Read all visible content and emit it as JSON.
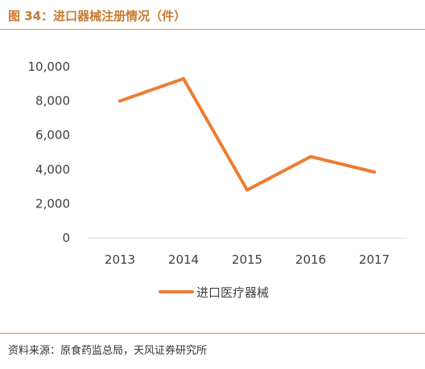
{
  "header": {
    "title": "图 34：进口器械注册情况（件）"
  },
  "footer": {
    "source": "资料来源：原食药监总局，天风证券研究所"
  },
  "colors": {
    "accent": "#c77a2e",
    "series_line": "#ed7d31",
    "axis": "#d9d9d9",
    "rule": "#d9954a"
  },
  "chart_data": {
    "type": "line",
    "title": "",
    "xlabel": "",
    "ylabel": "",
    "x": [
      "2013",
      "2014",
      "2015",
      "2016",
      "2017"
    ],
    "ylim": [
      0,
      10000
    ],
    "yticks": [
      0,
      2000,
      4000,
      6000,
      8000,
      10000
    ],
    "ytick_labels": [
      "0",
      "2,000",
      "4,000",
      "6,000",
      "8,000",
      "10,000"
    ],
    "grid": false,
    "legend_position": "bottom",
    "series": [
      {
        "name": "进口医疗器械",
        "color": "#ed7d31",
        "values": [
          8000,
          9300,
          2800,
          4750,
          3850
        ]
      }
    ]
  }
}
